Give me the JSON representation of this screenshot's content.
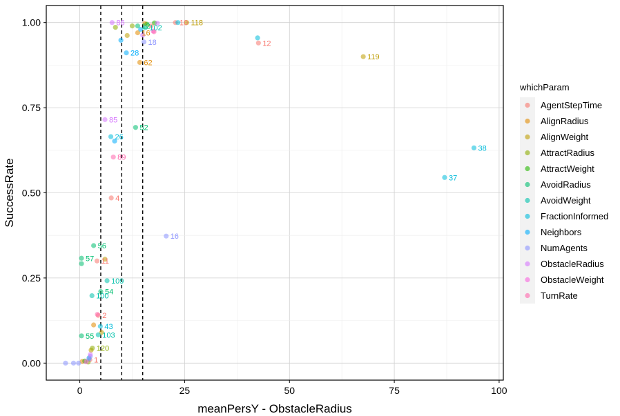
{
  "chart_data": {
    "type": "scatter",
    "xlabel": "meanPersY - ObstacleRadius",
    "ylabel": "SuccessRate",
    "xlim": [
      -8,
      101
    ],
    "ylim": [
      -0.05,
      1.05
    ],
    "x_ticks": [
      0,
      25,
      50,
      75,
      100
    ],
    "x_tick_labels": [
      "0",
      "25",
      "50",
      "75",
      "100"
    ],
    "y_ticks": [
      0,
      0.25,
      0.5,
      0.75,
      1.0
    ],
    "y_tick_labels": [
      "0.00",
      "0.25",
      "0.50",
      "0.75",
      "1.00"
    ],
    "vlines": [
      5,
      10,
      15
    ],
    "grid": true,
    "legend": {
      "title": "whichParam",
      "placement": "right",
      "entries": [
        {
          "name": "AgentStepTime",
          "color": "#F8766D"
        },
        {
          "name": "AlignRadius",
          "color": "#E18A00"
        },
        {
          "name": "AlignWeight",
          "color": "#BE9C00"
        },
        {
          "name": "AttractRadius",
          "color": "#8CAB00"
        },
        {
          "name": "AttractWeight",
          "color": "#24B700"
        },
        {
          "name": "AvoidRadius",
          "color": "#00BE70"
        },
        {
          "name": "AvoidWeight",
          "color": "#00C1AB"
        },
        {
          "name": "FractionInformed",
          "color": "#00BBDA"
        },
        {
          "name": "Neighbors",
          "color": "#00ACFC"
        },
        {
          "name": "NumAgents",
          "color": "#8B93FF"
        },
        {
          "name": "ObstacleRadius",
          "color": "#D575FE"
        },
        {
          "name": "ObstacleWeight",
          "color": "#F962DD"
        },
        {
          "name": "TurnRate",
          "color": "#FF65AC"
        }
      ]
    },
    "series": [
      {
        "name": "AgentStepTime",
        "points": [
          {
            "x": 42.6,
            "y": 0.94,
            "label": "12"
          },
          {
            "x": 22.8,
            "y": 1.0,
            "label": "10"
          },
          {
            "x": 7.5,
            "y": 0.485,
            "label": "4"
          },
          {
            "x": 4.1,
            "y": 0.3,
            "label": "11"
          },
          {
            "x": 4.4,
            "y": 0.14,
            "label": "2"
          },
          {
            "x": 2.4,
            "y": 0.01,
            "label": "1"
          },
          {
            "x": 17.0,
            "y": 0.99,
            "label": ""
          }
        ]
      },
      {
        "name": "AlignRadius",
        "points": [
          {
            "x": 14.3,
            "y": 0.883,
            "label": "62"
          },
          {
            "x": 13.8,
            "y": 0.97,
            "label": "16"
          },
          {
            "x": 3.3,
            "y": 0.112,
            "label": ""
          },
          {
            "x": 15.5,
            "y": 0.997,
            "label": ""
          },
          {
            "x": 0.6,
            "y": 0.005,
            "label": ""
          }
        ]
      },
      {
        "name": "AlignWeight",
        "points": [
          {
            "x": 67.6,
            "y": 0.9,
            "label": "119"
          },
          {
            "x": 25.5,
            "y": 1.0,
            "label": "118"
          },
          {
            "x": 6.0,
            "y": 0.305,
            "label": ""
          },
          {
            "x": 11.3,
            "y": 0.962,
            "label": ""
          },
          {
            "x": 5.2,
            "y": 0.09,
            "label": ""
          },
          {
            "x": 2.7,
            "y": 0.038,
            "label": ""
          }
        ]
      },
      {
        "name": "AttractRadius",
        "points": [
          {
            "x": 3.0,
            "y": 0.044,
            "label": "120"
          },
          {
            "x": 8.5,
            "y": 0.986,
            "label": ""
          },
          {
            "x": 12.5,
            "y": 0.99,
            "label": ""
          },
          {
            "x": 2.0,
            "y": 0.003,
            "label": ""
          }
        ]
      },
      {
        "name": "AttractWeight",
        "points": [
          {
            "x": 17.8,
            "y": 0.999,
            "label": ""
          },
          {
            "x": 16.0,
            "y": 0.995,
            "label": ""
          },
          {
            "x": 1.2,
            "y": 0.006,
            "label": ""
          }
        ]
      },
      {
        "name": "AvoidRadius",
        "points": [
          {
            "x": 13.3,
            "y": 0.692,
            "label": "52"
          },
          {
            "x": 3.3,
            "y": 0.345,
            "label": "56"
          },
          {
            "x": 0.4,
            "y": 0.308,
            "label": "57"
          },
          {
            "x": 0.4,
            "y": 0.292,
            "label": ""
          },
          {
            "x": 5.0,
            "y": 0.21,
            "label": "54"
          },
          {
            "x": 0.4,
            "y": 0.08,
            "label": "55"
          },
          {
            "x": 13.8,
            "y": 0.99,
            "label": "12"
          }
        ]
      },
      {
        "name": "AvoidWeight",
        "points": [
          {
            "x": 6.5,
            "y": 0.242,
            "label": "109"
          },
          {
            "x": 2.9,
            "y": 0.198,
            "label": "100"
          },
          {
            "x": 4.4,
            "y": 0.083,
            "label": "103"
          },
          {
            "x": 15.6,
            "y": 0.985,
            "label": "102"
          }
        ]
      },
      {
        "name": "FractionInformed",
        "points": [
          {
            "x": 94.0,
            "y": 0.632,
            "label": "38"
          },
          {
            "x": 87.0,
            "y": 0.545,
            "label": "37"
          },
          {
            "x": 7.4,
            "y": 0.665,
            "label": "26"
          },
          {
            "x": 4.9,
            "y": 0.108,
            "label": "43"
          },
          {
            "x": 42.4,
            "y": 0.955,
            "label": ""
          },
          {
            "x": 23.4,
            "y": 1.0,
            "label": ""
          },
          {
            "x": 2.2,
            "y": 0.015,
            "label": ""
          }
        ]
      },
      {
        "name": "Neighbors",
        "points": [
          {
            "x": 11.1,
            "y": 0.911,
            "label": "28"
          },
          {
            "x": 9.8,
            "y": 0.948,
            "label": ""
          },
          {
            "x": 8.3,
            "y": 0.652,
            "label": ""
          },
          {
            "x": 14.5,
            "y": 0.98,
            "label": ""
          }
        ]
      },
      {
        "name": "NumAgents",
        "points": [
          {
            "x": 20.6,
            "y": 0.373,
            "label": "16"
          },
          {
            "x": 15.3,
            "y": 0.943,
            "label": "18"
          },
          {
            "x": -3.4,
            "y": 0.0,
            "label": ""
          },
          {
            "x": -1.5,
            "y": 0.0,
            "label": ""
          },
          {
            "x": -0.3,
            "y": 0.0,
            "label": ""
          },
          {
            "x": 2.5,
            "y": 0.02,
            "label": ""
          },
          {
            "x": 2.2,
            "y": 0.012,
            "label": ""
          }
        ]
      },
      {
        "name": "ObstacleRadius",
        "points": [
          {
            "x": 7.7,
            "y": 1.0,
            "label": "86"
          },
          {
            "x": 6.0,
            "y": 0.715,
            "label": "85"
          },
          {
            "x": 15.0,
            "y": 0.963,
            "label": ""
          },
          {
            "x": 18.5,
            "y": 0.998,
            "label": ""
          },
          {
            "x": 2.5,
            "y": 0.025,
            "label": ""
          }
        ]
      },
      {
        "name": "ObstacleWeight",
        "points": [
          {
            "x": 17.5,
            "y": 0.975,
            "label": ""
          },
          {
            "x": 1.5,
            "y": 0.004,
            "label": ""
          }
        ]
      },
      {
        "name": "TurnRate",
        "points": [
          {
            "x": 8.0,
            "y": 0.605,
            "label": "89"
          },
          {
            "x": 4.2,
            "y": 0.143,
            "label": ""
          },
          {
            "x": 17.7,
            "y": 0.973,
            "label": ""
          }
        ]
      }
    ]
  }
}
